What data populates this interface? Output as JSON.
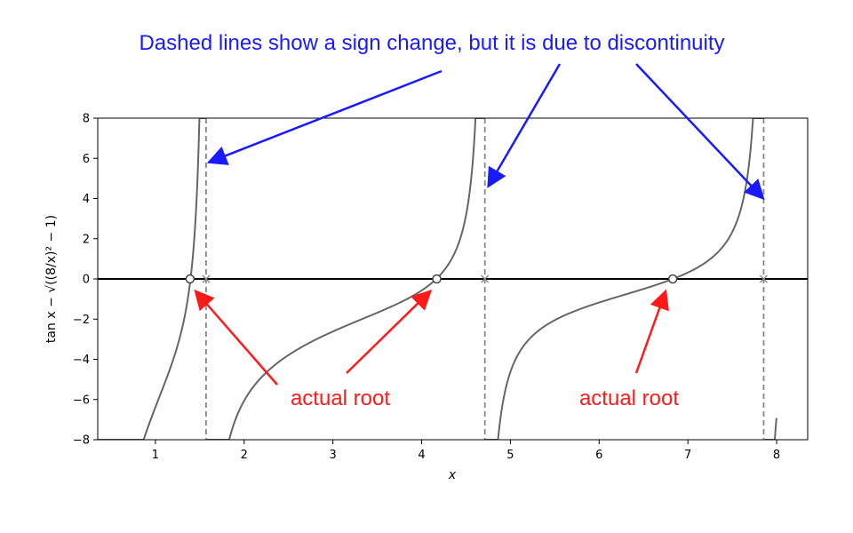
{
  "chart_data": {
    "type": "line",
    "title": "",
    "xlabel": "x",
    "ylabel": "tan x − √((8/x)² − 1)",
    "xlim": [
      0.35,
      8.35
    ],
    "ylim": [
      -8,
      8
    ],
    "x_ticks": [
      1,
      2,
      3,
      4,
      5,
      6,
      7,
      8
    ],
    "y_ticks": [
      8,
      6,
      4,
      2,
      0,
      -2,
      -4,
      -6,
      -8
    ],
    "x_tick_labels": [
      "1",
      "2",
      "3",
      "4",
      "5",
      "6",
      "7",
      "8"
    ],
    "y_tick_labels": [
      "8",
      "6",
      "4",
      "2",
      "0",
      "−2",
      "−4",
      "−6",
      "−8"
    ],
    "grid": false,
    "function": "tan(x) - sqrt((8/x)^2 - 1)",
    "curve_color": "#666666",
    "zero_line_color": "#000000",
    "dashed_lines": {
      "x": [
        1.5708,
        4.7124,
        7.854
      ],
      "color": "#888888"
    },
    "roots": {
      "x": [
        1.39,
        4.17,
        6.83
      ],
      "y": [
        0,
        0,
        0
      ]
    },
    "annotations": {
      "dashed_note": {
        "text": "Dashed lines show a sign change, but it is due to discontinuity",
        "color": "#1a1aff",
        "arrow_targets": [
          [
            1.6,
            5.8
          ],
          [
            4.75,
            4.6
          ],
          [
            7.85,
            4.0
          ]
        ]
      },
      "root_labels": [
        {
          "text": "actual root",
          "color": "#ff1a1a",
          "arrow_targets": [
            [
              1.45,
              -0.6
            ],
            [
              4.1,
              -0.6
            ]
          ]
        },
        {
          "text": "actual root",
          "color": "#ff1a1a",
          "arrow_targets": [
            [
              6.75,
              -0.6
            ]
          ]
        }
      ]
    }
  }
}
